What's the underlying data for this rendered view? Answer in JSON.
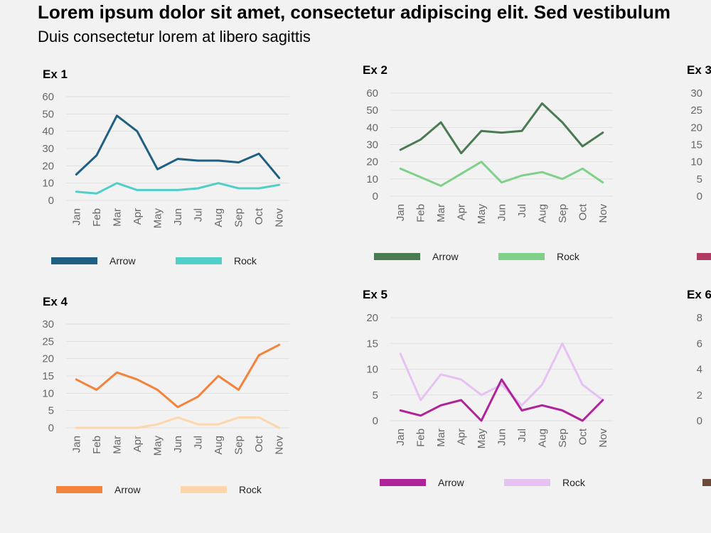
{
  "header": {
    "title": "Lorem ipsum dolor sit amet, consectetur adipiscing elit. Sed vestibulum",
    "subtitle": "Duis consectetur lorem at libero sagittis"
  },
  "chart_data": [
    {
      "type": "line",
      "title": "Ex 1",
      "categories": [
        "Jan",
        "Feb",
        "Mar",
        "Apr",
        "May",
        "Jun",
        "Jul",
        "Aug",
        "Sep",
        "Oct",
        "Nov"
      ],
      "ylim": [
        0,
        60
      ],
      "yticks": [
        0,
        10,
        20,
        30,
        40,
        50,
        60
      ],
      "series": [
        {
          "name": "Arrow",
          "color": "#1f5f82",
          "values": [
            15,
            26,
            49,
            40,
            18,
            24,
            23,
            23,
            22,
            27,
            13
          ]
        },
        {
          "name": "Rock",
          "color": "#4fcfc8",
          "values": [
            5,
            4,
            10,
            6,
            6,
            6,
            7,
            10,
            7,
            7,
            9
          ]
        }
      ],
      "legend": "bottom"
    },
    {
      "type": "line",
      "title": "Ex  2",
      "categories": [
        "Jan",
        "Feb",
        "Mar",
        "Apr",
        "May",
        "Jun",
        "Jul",
        "Aug",
        "Sep",
        "Oct",
        "Nov"
      ],
      "ylim": [
        0,
        60
      ],
      "yticks": [
        0,
        10,
        20,
        30,
        40,
        50,
        60
      ],
      "series": [
        {
          "name": "Arrow",
          "color": "#4a7a52",
          "values": [
            27,
            33,
            43,
            25,
            38,
            37,
            38,
            54,
            43,
            29,
            37
          ]
        },
        {
          "name": "Rock",
          "color": "#7fd18a",
          "values": [
            16,
            11,
            6,
            13,
            20,
            8,
            12,
            14,
            10,
            16,
            8
          ]
        }
      ],
      "legend": "bottom"
    },
    {
      "type": "line",
      "title": "Ex 3",
      "categories": [],
      "ylim": [
        0,
        30
      ],
      "yticks": [
        0,
        5,
        10,
        15,
        20,
        25,
        30
      ],
      "series": [
        {
          "name": "",
          "color": "#b03a63",
          "values": []
        }
      ],
      "legend": "bottom"
    },
    {
      "type": "line",
      "title": "Ex 4",
      "categories": [
        "Jan",
        "Feb",
        "Mar",
        "Apr",
        "May",
        "Jun",
        "Jul",
        "Aug",
        "Sep",
        "Oct",
        "Nov"
      ],
      "ylim": [
        0,
        30
      ],
      "yticks": [
        0,
        5,
        10,
        15,
        20,
        25,
        30
      ],
      "series": [
        {
          "name": "Arrow",
          "color": "#f5823a",
          "values": [
            14,
            11,
            16,
            14,
            11,
            6,
            9,
            15,
            11,
            21,
            24
          ]
        },
        {
          "name": "Rock",
          "color": "#fdd6ac",
          "values": [
            0,
            0,
            0,
            0,
            1,
            3,
            1,
            1,
            3,
            3,
            0
          ]
        }
      ],
      "legend": "bottom"
    },
    {
      "type": "line",
      "title": "Ex 5",
      "categories": [
        "Jan",
        "Feb",
        "Mar",
        "Apr",
        "May",
        "Jun",
        "Jul",
        "Aug",
        "Sep",
        "Oct",
        "Nov"
      ],
      "ylim": [
        0,
        20
      ],
      "yticks": [
        0,
        5,
        10,
        15,
        20
      ],
      "series": [
        {
          "name": "Arrow",
          "color": "#b0229a",
          "values": [
            2,
            1,
            3,
            4,
            0,
            8,
            2,
            3,
            2,
            0,
            4
          ]
        },
        {
          "name": "Rock",
          "color": "#e6c2f2",
          "values": [
            13,
            4,
            9,
            8,
            5,
            7,
            3,
            7,
            15,
            7,
            4
          ]
        }
      ],
      "legend": "bottom"
    },
    {
      "type": "line",
      "title": "Ex 6",
      "categories": [],
      "ylim": [
        0,
        8
      ],
      "yticks": [
        0,
        2,
        4,
        6,
        8
      ],
      "series": [
        {
          "name": "",
          "color": "#6b4a3a",
          "values": []
        }
      ],
      "legend": "bottom"
    }
  ]
}
